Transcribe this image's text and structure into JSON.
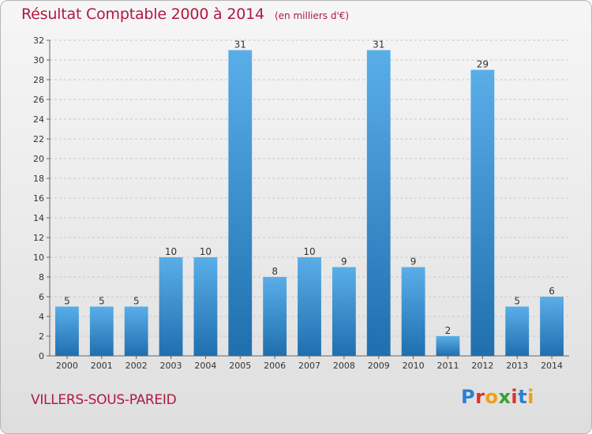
{
  "header": {
    "title": "Résultat Comptable 2000 à 2014",
    "unit": "(en milliers d'€)"
  },
  "footer": {
    "commune": "VILLERS-SOUS-PAREID",
    "logo": "Proxiti"
  },
  "colors": {
    "accent": "#b01840",
    "bar_top": "#5aaee8",
    "bar_bottom": "#1f6faf"
  },
  "chart_data": {
    "type": "bar",
    "title": "Résultat Comptable 2000 à 2014",
    "subtitle": "(en milliers d'€)",
    "xlabel": "",
    "ylabel": "",
    "categories": [
      "2000",
      "2001",
      "2002",
      "2003",
      "2004",
      "2005",
      "2006",
      "2007",
      "2008",
      "2009",
      "2010",
      "2011",
      "2012",
      "2013",
      "2014"
    ],
    "values": [
      5,
      5,
      5,
      10,
      10,
      31,
      8,
      10,
      9,
      31,
      9,
      2,
      29,
      5,
      6
    ],
    "ylim": [
      0,
      32
    ],
    "yticks": [
      0,
      2,
      4,
      6,
      8,
      10,
      12,
      14,
      16,
      18,
      20,
      22,
      24,
      26,
      28,
      30,
      32
    ],
    "grid": true,
    "legend": "none"
  }
}
